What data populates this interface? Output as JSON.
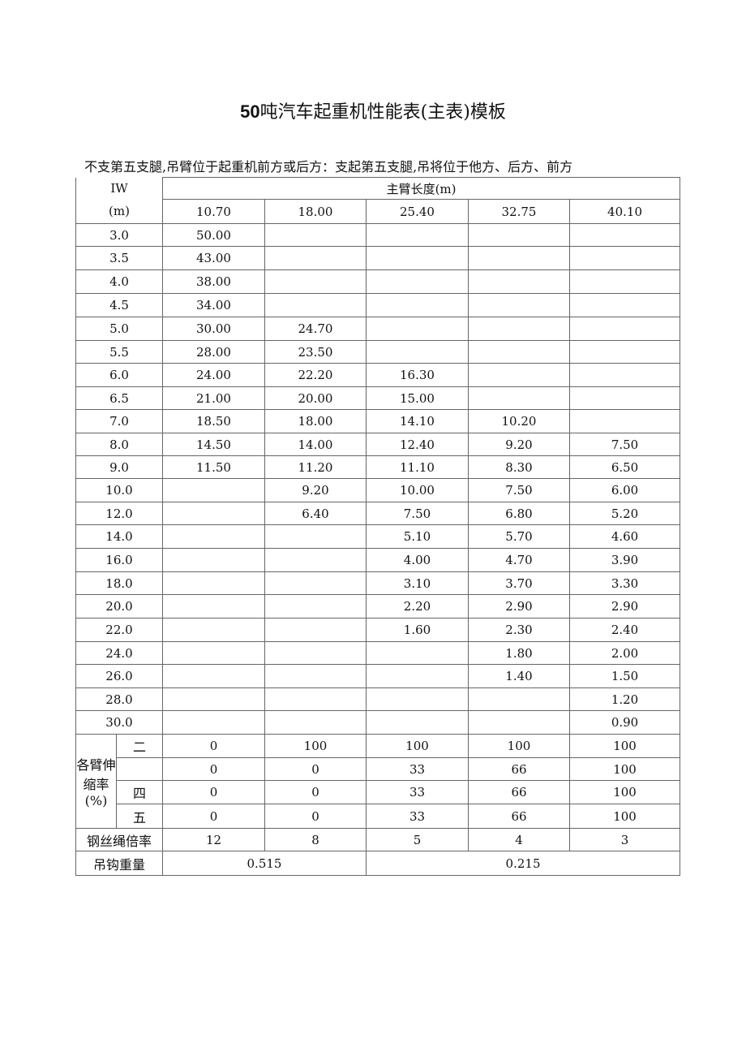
{
  "title_bold": "50",
  "title_rest": "吨汽车起重机性能表(主表)模板",
  "note": "不支第五支腿,吊臂位于起重机前方或后方：支起第五支腿,吊将位于他方、后方、前方",
  "table": {
    "radius_header_1": "IW",
    "radius_header_2": "(m)",
    "boom_header": "主臂长度(m)",
    "boom_lengths": [
      "10.70",
      "18.00",
      "25.40",
      "32.75",
      "40.10"
    ],
    "rows": [
      {
        "r": "3.0",
        "v": [
          "50.00",
          "",
          "",
          "",
          ""
        ]
      },
      {
        "r": "3.5",
        "v": [
          "43.00",
          "",
          "",
          "",
          ""
        ]
      },
      {
        "r": "4.0",
        "v": [
          "38.00",
          "",
          "",
          "",
          ""
        ]
      },
      {
        "r": "4.5",
        "v": [
          "34.00",
          "",
          "",
          "",
          ""
        ]
      },
      {
        "r": "5.0",
        "v": [
          "30.00",
          "24.70",
          "",
          "",
          ""
        ]
      },
      {
        "r": "5.5",
        "v": [
          "28.00",
          "23.50",
          "",
          "",
          ""
        ]
      },
      {
        "r": "6.0",
        "v": [
          "24.00",
          "22.20",
          "16.30",
          "",
          ""
        ]
      },
      {
        "r": "6.5",
        "v": [
          "21.00",
          "20.00",
          "15.00",
          "",
          ""
        ]
      },
      {
        "r": "7.0",
        "v": [
          "18.50",
          "18.00",
          "14.10",
          "10.20",
          ""
        ]
      },
      {
        "r": "8.0",
        "v": [
          "14.50",
          "14.00",
          "12.40",
          "9.20",
          "7.50"
        ]
      },
      {
        "r": "9.0",
        "v": [
          "11.50",
          "11.20",
          "11.10",
          "8.30",
          "6.50"
        ]
      },
      {
        "r": "10.0",
        "v": [
          "",
          "9.20",
          "10.00",
          "7.50",
          "6.00"
        ]
      },
      {
        "r": "12.0",
        "v": [
          "",
          "6.40",
          "7.50",
          "6.80",
          "5.20"
        ]
      },
      {
        "r": "14.0",
        "v": [
          "",
          "",
          "5.10",
          "5.70",
          "4.60"
        ]
      },
      {
        "r": "16.0",
        "v": [
          "",
          "",
          "4.00",
          "4.70",
          "3.90"
        ]
      },
      {
        "r": "18.0",
        "v": [
          "",
          "",
          "3.10",
          "3.70",
          "3.30"
        ]
      },
      {
        "r": "20.0",
        "v": [
          "",
          "",
          "2.20",
          "2.90",
          "2.90"
        ]
      },
      {
        "r": "22.0",
        "v": [
          "",
          "",
          "1.60",
          "2.30",
          "2.40"
        ]
      },
      {
        "r": "24.0",
        "v": [
          "",
          "",
          "",
          "1.80",
          "2.00"
        ]
      },
      {
        "r": "26.0",
        "v": [
          "",
          "",
          "",
          "1.40",
          "1.50"
        ]
      },
      {
        "r": "28.0",
        "v": [
          "",
          "",
          "",
          "",
          "1.20"
        ]
      },
      {
        "r": "30.0",
        "v": [
          "",
          "",
          "",
          "",
          "0.90"
        ]
      }
    ],
    "extension_label": "各臂伸缩率(%)",
    "extension_rows": [
      {
        "section": "二",
        "v": [
          "0",
          "100",
          "100",
          "100",
          "100"
        ]
      },
      {
        "section": "",
        "v": [
          "0",
          "0",
          "33",
          "66",
          "100"
        ]
      },
      {
        "section": "四",
        "v": [
          "0",
          "0",
          "33",
          "66",
          "100"
        ]
      },
      {
        "section": "五",
        "v": [
          "0",
          "0",
          "33",
          "66",
          "100"
        ]
      }
    ],
    "rope_label": "钢丝绳倍率",
    "rope_values": [
      "12",
      "8",
      "5",
      "4",
      "3"
    ],
    "hook_label": "吊钩重量",
    "hook_values": [
      "0.515",
      "0.215"
    ]
  }
}
